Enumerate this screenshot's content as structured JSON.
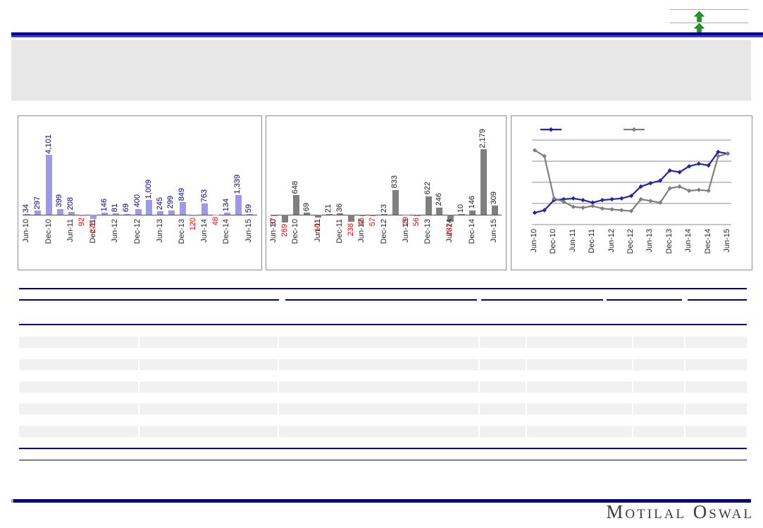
{
  "rating_box": {
    "indicators": [
      {
        "icon": "up-arrow",
        "color": "#1E9E1E"
      },
      {
        "icon": "up-arrow",
        "color": "#1E9E1E"
      }
    ]
  },
  "banner": {
    "text": ""
  },
  "chart_data": [
    {
      "type": "bar",
      "title": "",
      "xlabel": "",
      "ylabel": "",
      "categories": [
        "Jun-10",
        "Sep-10",
        "Dec-10",
        "Mar-11",
        "Jun-11",
        "Sep-11",
        "Dec-11",
        "Mar-12",
        "Jun-12",
        "Sep-12",
        "Dec-12",
        "Mar-13",
        "Jun-13",
        "Sep-13",
        "Dec-13",
        "Mar-14",
        "Jun-14",
        "Sep-14",
        "Dec-14",
        "Mar-15",
        "Jun-15"
      ],
      "values": [
        34,
        297,
        4101,
        399,
        208,
        -92,
        -275,
        146,
        81,
        69,
        400,
        1009,
        245,
        299,
        849,
        -120,
        763,
        -48,
        134,
        1339,
        59
      ],
      "x_tick_labels": [
        "Jun-10",
        "Dec-10",
        "Jun-11",
        "Dec-11",
        "Jun-12",
        "Dec-12",
        "Jun-13",
        "Dec-13",
        "Jun-14",
        "Dec-14",
        "Jun-15"
      ],
      "bar_color": "#9A9AE8",
      "value_label_color": "#00008B",
      "negative_value_label_color": "#FF0000",
      "grid": false,
      "legend_position": "none"
    },
    {
      "type": "bar",
      "title": "",
      "xlabel": "",
      "ylabel": "",
      "categories": [
        "Jun-10",
        "Sep-10",
        "Dec-10",
        "Mar-11",
        "Jun-11",
        "Sep-11",
        "Dec-11",
        "Mar-12",
        "Jun-12",
        "Sep-12",
        "Dec-12",
        "Mar-13",
        "Jun-13",
        "Sep-13",
        "Dec-13",
        "Mar-14",
        "Jun-14",
        "Sep-14",
        "Dec-14",
        "Mar-15",
        "Jun-15"
      ],
      "values": [
        -37,
        -269,
        648,
        69,
        -101,
        21,
        36,
        -238,
        -46,
        -57,
        23,
        833,
        -29,
        -56,
        622,
        246,
        -232,
        10,
        146,
        2179,
        309
      ],
      "x_tick_labels": [
        "Jun-10",
        "Dec-10",
        "Jun-11",
        "Dec-11",
        "Jun-12",
        "Dec-12",
        "Jun-13",
        "Dec-13",
        "Jun-14",
        "Dec-14",
        "Jun-15"
      ],
      "bar_color": "#7F7F7F",
      "value_label_color": "#1A1A1A",
      "negative_value_label_color": "#FF0000",
      "grid": false,
      "legend_position": "none"
    },
    {
      "type": "line",
      "title": "",
      "xlabel": "",
      "ylabel": "",
      "x": [
        "Jun-10",
        "Sep-10",
        "Dec-10",
        "Mar-11",
        "Jun-11",
        "Sep-11",
        "Dec-11",
        "Mar-12",
        "Jun-12",
        "Sep-12",
        "Dec-12",
        "Mar-13",
        "Jun-13",
        "Sep-13",
        "Dec-13",
        "Mar-14",
        "Jun-14",
        "Sep-14",
        "Dec-14",
        "Mar-15",
        "Jun-15"
      ],
      "x_tick_labels": [
        "Jun-10",
        "Dec-10",
        "Jun-11",
        "Dec-11",
        "Jun-12",
        "Dec-12",
        "Jun-13",
        "Dec-13",
        "Jun-14",
        "Dec-14",
        "Jun-15"
      ],
      "series": [
        {
          "name": "",
          "color": "#2424A8",
          "marker": "diamond",
          "values": [
            14,
            17,
            29,
            30,
            31,
            29,
            26,
            29,
            30,
            31,
            34,
            45,
            49,
            52,
            64,
            62,
            69,
            72,
            70,
            86,
            84
          ]
        },
        {
          "name": "",
          "color": "#7F7F7F",
          "marker": "diamond",
          "values": [
            88,
            81,
            31,
            27,
            21,
            20,
            22,
            19,
            18,
            17,
            16,
            30,
            28,
            26,
            43,
            45,
            40,
            41,
            40,
            81,
            84
          ]
        }
      ],
      "ylim": [
        0,
        100
      ],
      "grid": true,
      "legend_position": "top"
    }
  ],
  "table": {
    "header_text": "",
    "column_groups": 5,
    "body_columns": 7,
    "striped_rows": 5,
    "cell_text": ""
  },
  "footer": {
    "logo_text": "Motilal Oswal"
  }
}
